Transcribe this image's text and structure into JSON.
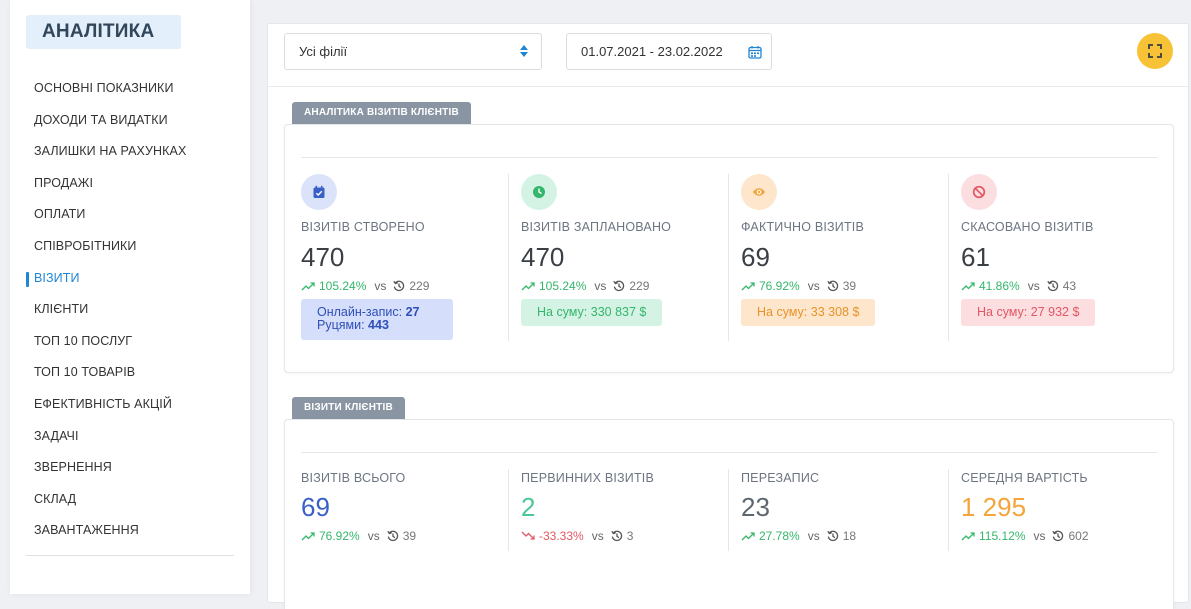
{
  "sidebar": {
    "title": "АНАЛІТИКА",
    "items": [
      {
        "label": "ОСНОВНІ ПОКАЗНИКИ"
      },
      {
        "label": "ДОХОДИ ТА ВИДАТКИ"
      },
      {
        "label": "ЗАЛИШКИ НА РАХУНКАХ"
      },
      {
        "label": "ПРОДАЖІ"
      },
      {
        "label": "ОПЛАТИ"
      },
      {
        "label": "СПІВРОБІТНИКИ"
      },
      {
        "label": "ВІЗИТИ"
      },
      {
        "label": "КЛІЄНТИ"
      },
      {
        "label": "ТОП 10 ПОСЛУГ"
      },
      {
        "label": "ТОП 10 ТОВАРІВ"
      },
      {
        "label": "ЕФЕКТИВНІСТЬ АКЦІЙ"
      },
      {
        "label": "ЗАДАЧІ"
      },
      {
        "label": "ЗВЕРНЕННЯ"
      },
      {
        "label": "СКЛАД"
      },
      {
        "label": "ЗАВАНТАЖЕННЯ"
      }
    ],
    "active_index": 6
  },
  "toolbar": {
    "branch_select": "Усі філії",
    "date_range": "01.07.2021 - 23.02.2022"
  },
  "section1": {
    "tab": "АНАЛІТИКА ВІЗИТІВ КЛІЄНТІВ",
    "cols": [
      {
        "label": "ВІЗИТІВ СТВОРЕНО",
        "value": "470",
        "pct": "105.24%",
        "vs": "vs",
        "prev": "229",
        "icon": "calendar-check-icon",
        "badge_line1_text": "Онлайн-запис: ",
        "badge_line1_val": "27",
        "badge_line2_text": "Руцями: ",
        "badge_line2_val": "443"
      },
      {
        "label": "ВІЗИТІВ ЗАПЛАНОВАНО",
        "value": "470",
        "pct": "105.24%",
        "vs": "vs",
        "prev": "229",
        "icon": "clock-icon",
        "badge_text": "На суму: ",
        "badge_val": "330 837 $"
      },
      {
        "label": "ФАКТИЧНО ВІЗИТІВ",
        "value": "69",
        "pct": "76.92%",
        "vs": "vs",
        "prev": "39",
        "icon": "eye-icon",
        "badge_text": "На суму: ",
        "badge_val": "33 308 $"
      },
      {
        "label": "СКАСОВАНО ВІЗИТІВ",
        "value": "61",
        "pct": "41.86%",
        "vs": "vs",
        "prev": "43",
        "icon": "ban-icon",
        "badge_text": "На суму: ",
        "badge_val": "27 932 $"
      }
    ]
  },
  "section2": {
    "tab": "ВІЗИТИ КЛІЄНТІВ",
    "cols": [
      {
        "label": "ВІЗИТІВ ВСЬОГО",
        "value": "69",
        "pct": "76.92%",
        "vs": "vs",
        "prev": "39"
      },
      {
        "label": "ПЕРВИННИХ ВІЗИТІВ",
        "value": "2",
        "pct": "-33.33%",
        "vs": "vs",
        "prev": "3"
      },
      {
        "label": "ПЕРЕЗАПИС",
        "value": "23",
        "pct": "27.78%",
        "vs": "vs",
        "prev": "18"
      },
      {
        "label": "СЕРЕДНЯ ВАРТІСТЬ",
        "value": "1 295",
        "pct": "115.12%",
        "vs": "vs",
        "prev": "602"
      }
    ]
  },
  "colors": {
    "accent_blue": "#1f86d6",
    "value_blue": "#3a5fc8",
    "value_green": "#4cc796",
    "value_gray": "#5e6670",
    "value_orange": "#f4a53a",
    "fullscreen_button": "#f7c236"
  }
}
